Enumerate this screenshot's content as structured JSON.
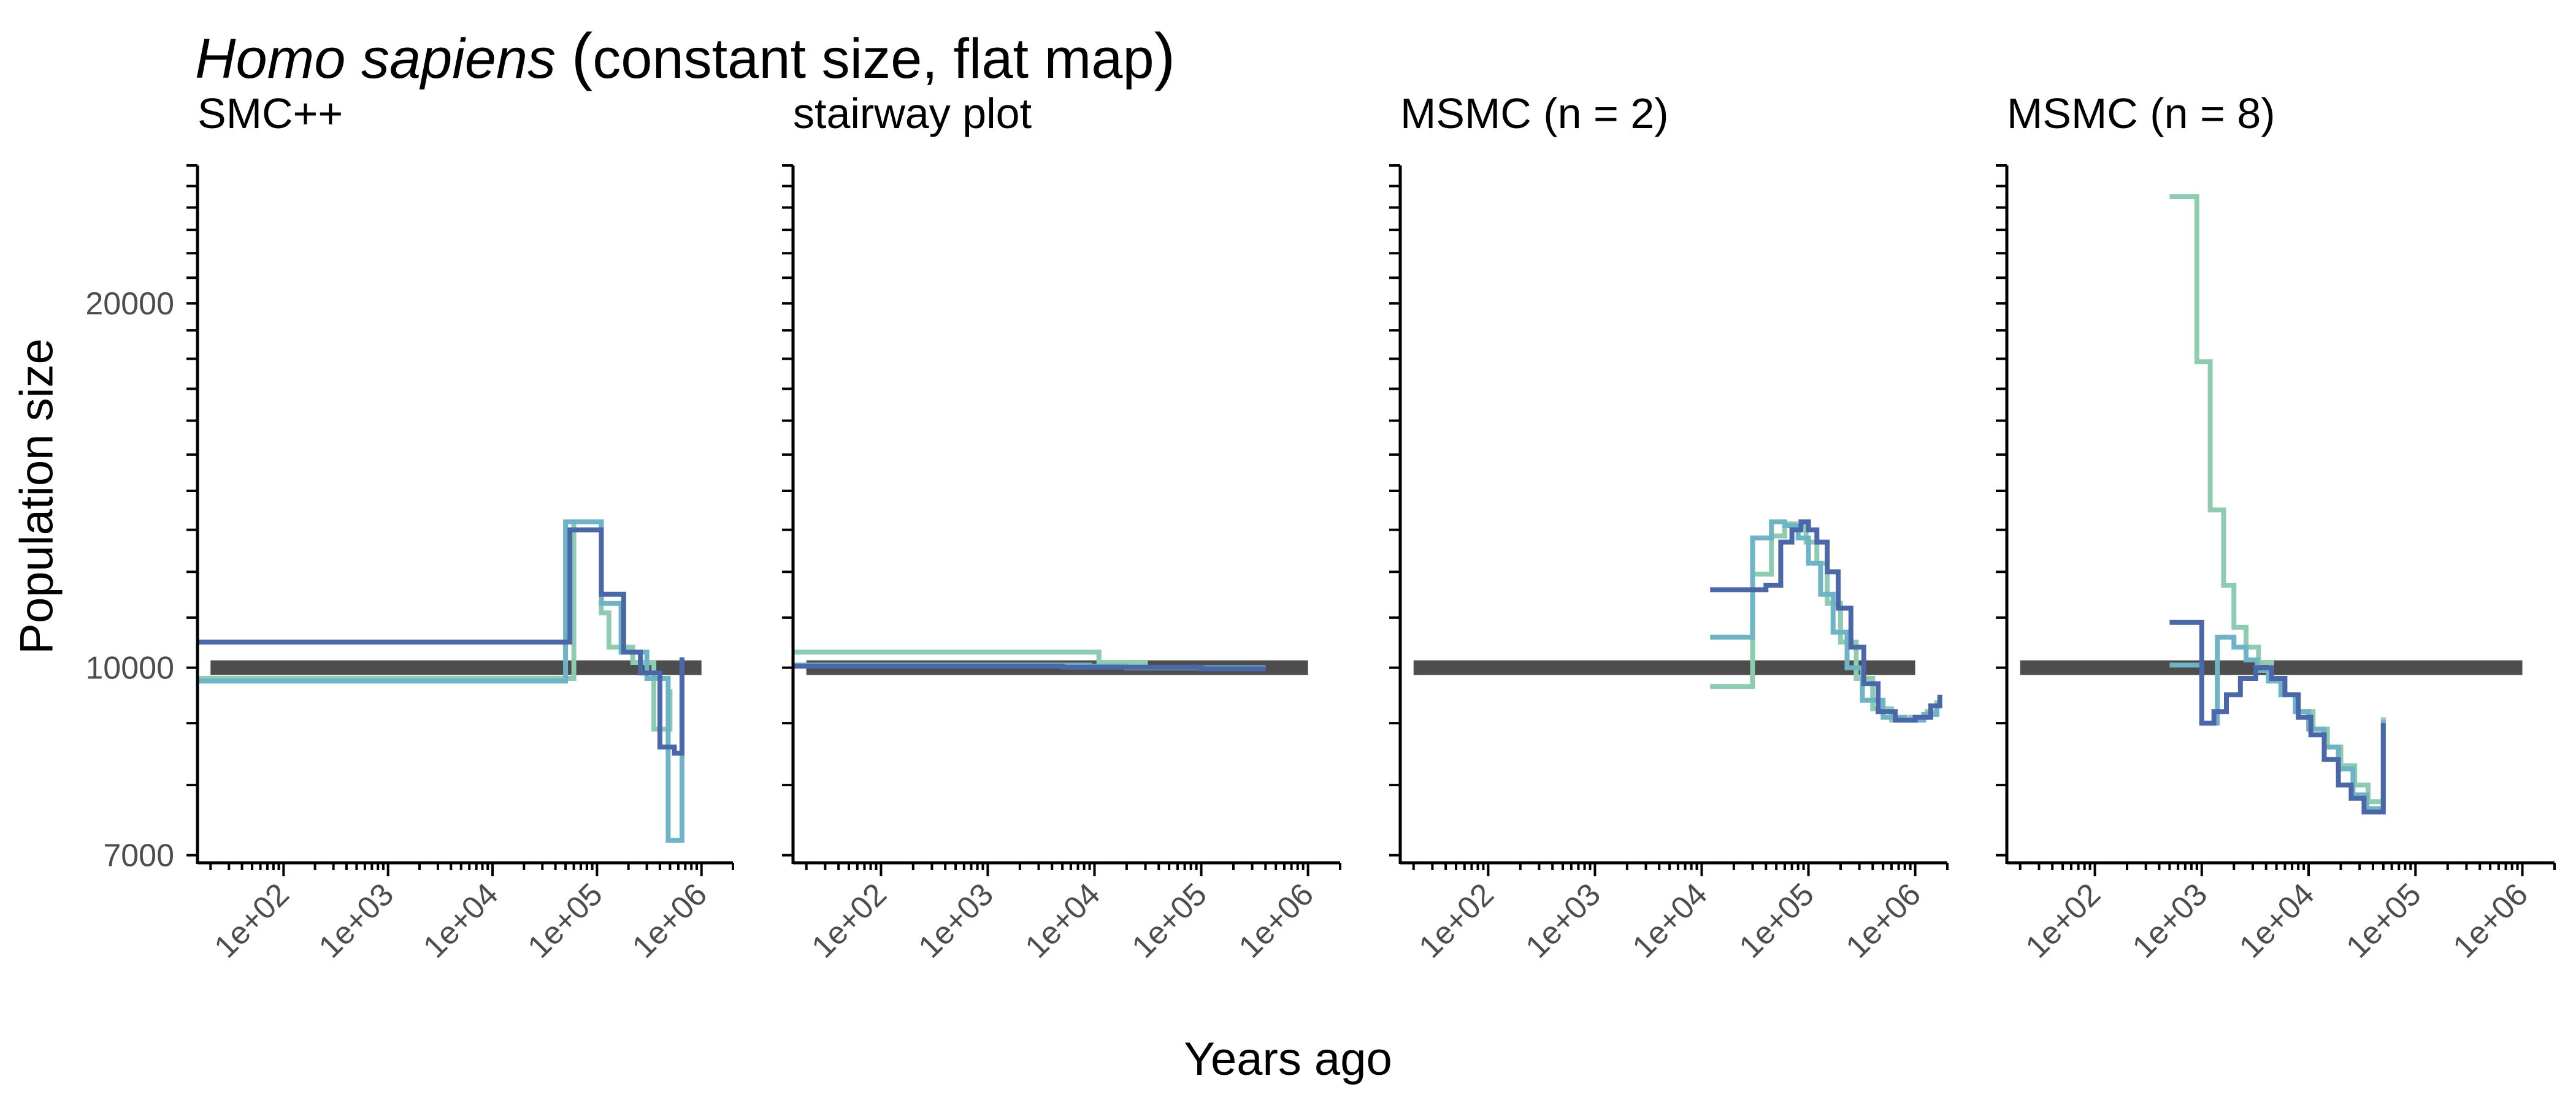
{
  "title_italic": "Homo sapiens",
  "title_rest": "constant size, flat map",
  "ylabel": "Population size",
  "xlabel": "Years ago",
  "colors": {
    "truth": "#4d4d4d",
    "series": [
      "#8ecbb0",
      "#6fb3c7",
      "#4a67a8"
    ],
    "axis": "#000000",
    "tick_label": "#4d4d4d"
  },
  "chart_data": [
    {
      "type": "line",
      "title": "SMC++",
      "x_scale": "log",
      "y_scale": "log",
      "xlim": [
        15,
        2000000
      ],
      "ylim": [
        6900,
        26000
      ],
      "x_ticks": [
        "1e+02",
        "1e+03",
        "1e+04",
        "1e+05",
        "1e+06"
      ],
      "y_ticks": [
        7000,
        10000,
        20000
      ],
      "truth": {
        "x": [
          20,
          1000000
        ],
        "y": [
          10000,
          10000
        ]
      },
      "series": [
        {
          "x": [
            15,
            60000,
            60000,
            110000,
            110000,
            130000,
            130000,
            220000,
            220000,
            350000,
            350000,
            500000,
            500000
          ],
          "y": [
            9800,
            9800,
            13200,
            13200,
            11100,
            11100,
            10400,
            10400,
            10100,
            10100,
            8900,
            8900,
            9600
          ]
        },
        {
          "x": [
            15,
            50000,
            50000,
            110000,
            110000,
            170000,
            170000,
            300000,
            300000,
            480000,
            480000,
            650000,
            650000
          ],
          "y": [
            9750,
            9750,
            13200,
            13200,
            11300,
            11300,
            10300,
            10300,
            9800,
            9800,
            7200,
            7200,
            10200
          ]
        },
        {
          "x": [
            15,
            55000,
            55000,
            110000,
            110000,
            180000,
            180000,
            260000,
            260000,
            400000,
            400000,
            550000,
            550000,
            650000,
            650000
          ],
          "y": [
            10500,
            10500,
            13000,
            13000,
            11500,
            11500,
            10300,
            10300,
            9900,
            9900,
            8600,
            8600,
            8500,
            8500,
            10200
          ]
        }
      ]
    },
    {
      "type": "line",
      "title": "stairway plot",
      "x_scale": "log",
      "y_scale": "log",
      "xlim": [
        15,
        2000000
      ],
      "ylim": [
        6900,
        26000
      ],
      "x_ticks": [
        "1e+02",
        "1e+03",
        "1e+04",
        "1e+05",
        "1e+06"
      ],
      "y_ticks": [
        7000,
        10000,
        20000
      ],
      "truth": {
        "x": [
          20,
          1000000
        ],
        "y": [
          10000,
          10000
        ]
      },
      "series": [
        {
          "x": [
            15,
            11000,
            11000,
            30000,
            30000,
            200000,
            200000,
            400000
          ],
          "y": [
            10300,
            10300,
            10100,
            10100,
            10000,
            10000,
            10000,
            10000
          ]
        },
        {
          "x": [
            15,
            9000,
            9000,
            20000,
            20000,
            400000
          ],
          "y": [
            10050,
            10050,
            10030,
            10030,
            10000,
            10000
          ]
        },
        {
          "x": [
            15,
            5000,
            5000,
            100000,
            100000,
            400000
          ],
          "y": [
            10030,
            10030,
            10010,
            10010,
            9980,
            9980
          ]
        }
      ]
    },
    {
      "type": "line",
      "title": "MSMC (n = 2)",
      "x_scale": "log",
      "y_scale": "log",
      "xlim": [
        15,
        2000000
      ],
      "ylim": [
        6900,
        26000
      ],
      "x_ticks": [
        "1e+02",
        "1e+03",
        "1e+04",
        "1e+05",
        "1e+06"
      ],
      "y_ticks": [
        7000,
        10000,
        20000
      ],
      "truth": {
        "x": [
          20,
          1000000
        ],
        "y": [
          10000,
          10000
        ]
      },
      "series": [
        {
          "x": [
            12000,
            30000,
            30000,
            45000,
            45000,
            60000,
            60000,
            75000,
            75000,
            95000,
            95000,
            120000,
            120000,
            150000,
            150000,
            200000,
            200000,
            280000,
            280000,
            400000,
            400000,
            600000,
            600000,
            900000,
            900000,
            1300000,
            1300000,
            1600000,
            1600000
          ],
          "y": [
            9650,
            9650,
            11950,
            11950,
            12850,
            12850,
            13150,
            13150,
            13080,
            13080,
            12700,
            12700,
            12200,
            12200,
            11300,
            11300,
            10500,
            10500,
            9800,
            9800,
            9250,
            9250,
            9050,
            9050,
            9100,
            9100,
            9200,
            9200,
            9400
          ]
        },
        {
          "x": [
            12000,
            25000,
            25000,
            30000,
            30000,
            45000,
            45000,
            60000,
            60000,
            80000,
            80000,
            100000,
            100000,
            130000,
            130000,
            170000,
            170000,
            230000,
            230000,
            320000,
            320000,
            500000,
            500000,
            800000,
            800000,
            1200000,
            1200000,
            1600000,
            1600000
          ],
          "y": [
            10600,
            10600,
            10600,
            10600,
            12800,
            12800,
            13200,
            13200,
            13100,
            13100,
            12800,
            12800,
            12200,
            12200,
            11500,
            11500,
            10700,
            10700,
            10000,
            10000,
            9400,
            9400,
            9100,
            9100,
            9050,
            9050,
            9150,
            9150,
            9300
          ]
        },
        {
          "x": [
            12000,
            40000,
            40000,
            55000,
            55000,
            70000,
            70000,
            85000,
            85000,
            100000,
            100000,
            120000,
            120000,
            150000,
            150000,
            190000,
            190000,
            250000,
            250000,
            330000,
            330000,
            450000,
            450000,
            650000,
            650000,
            1000000,
            1000000,
            1400000,
            1400000,
            1700000,
            1700000
          ],
          "y": [
            11600,
            11600,
            11700,
            11700,
            12700,
            12700,
            13000,
            13000,
            13200,
            13200,
            13000,
            13000,
            12700,
            12700,
            12000,
            12000,
            11200,
            11200,
            10400,
            10400,
            9700,
            9700,
            9200,
            9200,
            9050,
            9050,
            9100,
            9100,
            9300,
            9300,
            9500
          ]
        }
      ]
    },
    {
      "type": "line",
      "title": "MSMC (n = 8)",
      "x_scale": "log",
      "y_scale": "log",
      "xlim": [
        15,
        2000000
      ],
      "ylim": [
        6900,
        26000
      ],
      "x_ticks": [
        "1e+02",
        "1e+03",
        "1e+04",
        "1e+05",
        "1e+06"
      ],
      "y_ticks": [
        7000,
        10000,
        20000
      ],
      "truth": {
        "x": [
          20,
          1000000
        ],
        "y": [
          10000,
          10000
        ]
      },
      "series": [
        {
          "x": [
            500,
            900,
            900,
            1200,
            1200,
            1600,
            1600,
            2000,
            2000,
            2600,
            2600,
            3400,
            3400,
            4500,
            4500,
            6000,
            6000,
            8000,
            8000,
            11000,
            11000,
            15000,
            15000,
            20000,
            20000,
            27000,
            27000,
            36000,
            36000,
            50000,
            50000
          ],
          "y": [
            24500,
            24500,
            17900,
            17900,
            13500,
            13500,
            11700,
            11700,
            10800,
            10800,
            10400,
            10400,
            10100,
            10100,
            9800,
            9800,
            9500,
            9500,
            9200,
            9200,
            8900,
            8900,
            8600,
            8600,
            8300,
            8300,
            8000,
            8000,
            7750,
            7750,
            9100
          ]
        },
        {
          "x": [
            500,
            1000,
            1000,
            1400,
            1400,
            2000,
            2000,
            2600,
            2600,
            3300,
            3300,
            4200,
            4200,
            5500,
            5500,
            7500,
            7500,
            10000,
            10000,
            14000,
            14000,
            19000,
            19000,
            26000,
            26000,
            35000,
            35000,
            50000,
            50000
          ],
          "y": [
            10050,
            10050,
            9000,
            9000,
            10600,
            10600,
            10400,
            10400,
            10150,
            10150,
            9950,
            9950,
            9750,
            9750,
            9500,
            9500,
            9200,
            9200,
            8900,
            8900,
            8600,
            8600,
            8250,
            8250,
            7850,
            7850,
            7650,
            7650,
            9050
          ]
        },
        {
          "x": [
            500,
            1000,
            1000,
            1300,
            1300,
            1700,
            1700,
            2300,
            2300,
            3200,
            3200,
            4500,
            4500,
            6000,
            6000,
            8000,
            8000,
            10500,
            10500,
            14000,
            14000,
            19000,
            19000,
            25000,
            25000,
            33000,
            33000,
            50000,
            50000
          ],
          "y": [
            10900,
            10900,
            9000,
            9000,
            9200,
            9200,
            9500,
            9500,
            9800,
            9800,
            10000,
            10000,
            9800,
            9800,
            9500,
            9500,
            9100,
            9100,
            8800,
            8800,
            8400,
            8400,
            8000,
            8000,
            7800,
            7800,
            7600,
            7600,
            9000
          ]
        }
      ]
    }
  ]
}
